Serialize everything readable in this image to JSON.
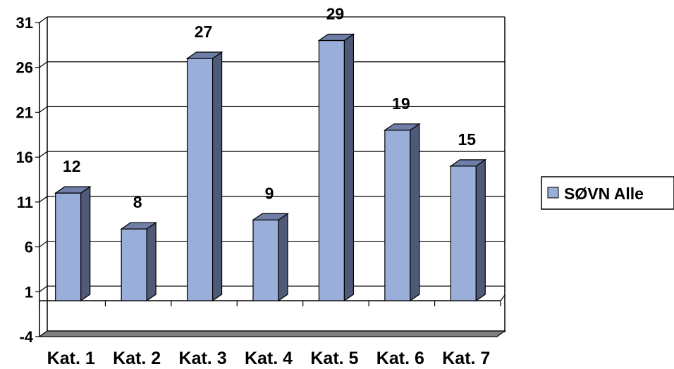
{
  "chart_data": {
    "type": "bar",
    "categories": [
      "Kat. 1",
      "Kat. 2",
      "Kat. 3",
      "Kat. 4",
      "Kat. 5",
      "Kat. 6",
      "Kat. 7"
    ],
    "series": [
      {
        "name": "SØVN Alle",
        "values": [
          12,
          8,
          27,
          9,
          29,
          19,
          15
        ]
      }
    ],
    "yticks": [
      -4,
      1,
      6,
      11,
      16,
      21,
      26,
      31
    ],
    "ylim": [
      -4,
      31
    ],
    "grid": true,
    "legend_position": "right",
    "three_d": true,
    "colors": {
      "bar_front": "#99aed9",
      "bar_side": "#4f5a78",
      "bar_top": "#6f7ea6",
      "floor": "#808080",
      "grid": "#000000"
    }
  }
}
